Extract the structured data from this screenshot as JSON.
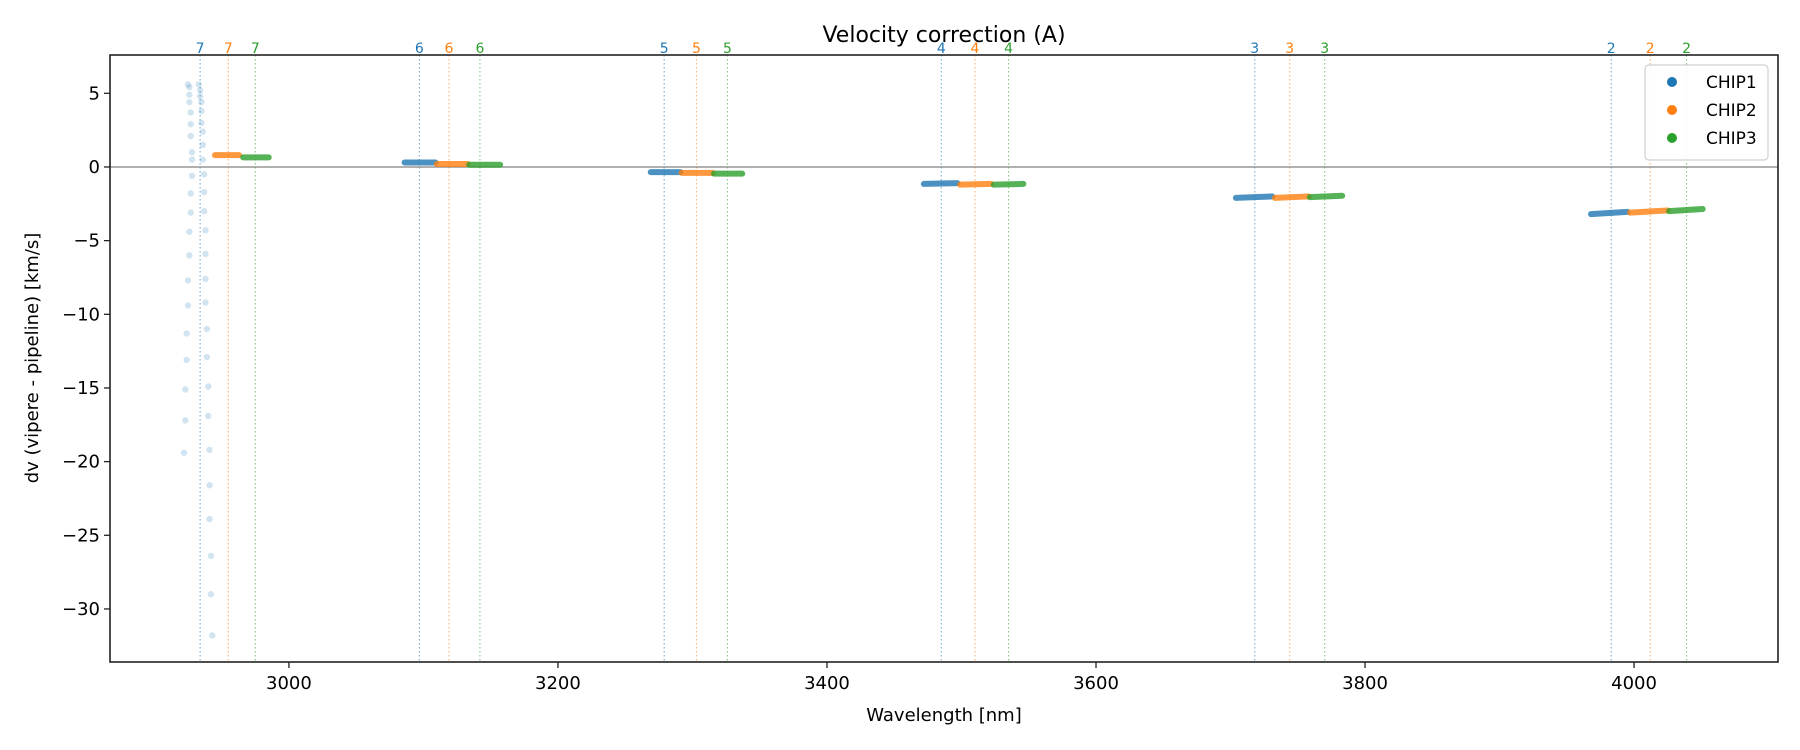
{
  "chart_data": {
    "type": "scatter",
    "title": "Velocity correction (A)",
    "xlabel": "Wavelength [nm]",
    "ylabel": "dv (vipere - pipeline) [km/s]",
    "xlim": [
      2867,
      4107
    ],
    "ylim": [
      -33.6,
      7.6
    ],
    "xticks": [
      3000,
      3200,
      3400,
      3600,
      3800,
      4000
    ],
    "xtick_labels": [
      "3000",
      "3200",
      "3400",
      "3600",
      "3800",
      "4000"
    ],
    "yticks": [
      5,
      0,
      -5,
      -10,
      -15,
      -20,
      -25,
      -30
    ],
    "ytick_labels": [
      "5",
      "0",
      "−5",
      "−10",
      "−15",
      "−20",
      "−25",
      "−30"
    ],
    "grid": false,
    "zero_line": 0,
    "legend": {
      "placement": "top-right",
      "entries": [
        {
          "label": "CHIP1",
          "color": "#1f77b4"
        },
        {
          "label": "CHIP2",
          "color": "#ff7f0e"
        },
        {
          "label": "CHIP3",
          "color": "#2ca02c"
        }
      ]
    },
    "order_markers": [
      {
        "order": "7",
        "chip": "CHIP1",
        "wavelength": 2934
      },
      {
        "order": "7",
        "chip": "CHIP2",
        "wavelength": 2955
      },
      {
        "order": "7",
        "chip": "CHIP3",
        "wavelength": 2975
      },
      {
        "order": "6",
        "chip": "CHIP1",
        "wavelength": 3097
      },
      {
        "order": "6",
        "chip": "CHIP2",
        "wavelength": 3119
      },
      {
        "order": "6",
        "chip": "CHIP3",
        "wavelength": 3142
      },
      {
        "order": "5",
        "chip": "CHIP1",
        "wavelength": 3279
      },
      {
        "order": "5",
        "chip": "CHIP2",
        "wavelength": 3303
      },
      {
        "order": "5",
        "chip": "CHIP3",
        "wavelength": 3326
      },
      {
        "order": "4",
        "chip": "CHIP1",
        "wavelength": 3485
      },
      {
        "order": "4",
        "chip": "CHIP2",
        "wavelength": 3510
      },
      {
        "order": "4",
        "chip": "CHIP3",
        "wavelength": 3535
      },
      {
        "order": "3",
        "chip": "CHIP1",
        "wavelength": 3718
      },
      {
        "order": "3",
        "chip": "CHIP2",
        "wavelength": 3744
      },
      {
        "order": "3",
        "chip": "CHIP3",
        "wavelength": 3770
      },
      {
        "order": "2",
        "chip": "CHIP1",
        "wavelength": 3983
      },
      {
        "order": "2",
        "chip": "CHIP2",
        "wavelength": 4012
      },
      {
        "order": "2",
        "chip": "CHIP3",
        "wavelength": 4039
      }
    ],
    "segments": [
      {
        "order": "7",
        "chip": "CHIP2",
        "x": [
          2945,
          2963
        ],
        "y": [
          0.8,
          0.8
        ]
      },
      {
        "order": "7",
        "chip": "CHIP3",
        "x": [
          2966,
          2985
        ],
        "y": [
          0.65,
          0.65
        ]
      },
      {
        "order": "6",
        "chip": "CHIP1",
        "x": [
          3086,
          3109
        ],
        "y": [
          0.3,
          0.3
        ]
      },
      {
        "order": "6",
        "chip": "CHIP2",
        "x": [
          3110,
          3133
        ],
        "y": [
          0.2,
          0.2
        ]
      },
      {
        "order": "6",
        "chip": "CHIP3",
        "x": [
          3134,
          3157
        ],
        "y": [
          0.15,
          0.15
        ]
      },
      {
        "order": "5",
        "chip": "CHIP1",
        "x": [
          3269,
          3291
        ],
        "y": [
          -0.35,
          -0.35
        ]
      },
      {
        "order": "5",
        "chip": "CHIP2",
        "x": [
          3292,
          3315
        ],
        "y": [
          -0.4,
          -0.4
        ]
      },
      {
        "order": "5",
        "chip": "CHIP3",
        "x": [
          3316,
          3337
        ],
        "y": [
          -0.45,
          -0.45
        ]
      },
      {
        "order": "4",
        "chip": "CHIP1",
        "x": [
          3472,
          3497
        ],
        "y": [
          -1.15,
          -1.1
        ]
      },
      {
        "order": "4",
        "chip": "CHIP2",
        "x": [
          3499,
          3522
        ],
        "y": [
          -1.2,
          -1.15
        ]
      },
      {
        "order": "4",
        "chip": "CHIP3",
        "x": [
          3524,
          3546
        ],
        "y": [
          -1.2,
          -1.15
        ]
      },
      {
        "order": "3",
        "chip": "CHIP1",
        "x": [
          3704,
          3731
        ],
        "y": [
          -2.1,
          -2.0
        ]
      },
      {
        "order": "3",
        "chip": "CHIP2",
        "x": [
          3733,
          3758
        ],
        "y": [
          -2.1,
          -2.0
        ]
      },
      {
        "order": "3",
        "chip": "CHIP3",
        "x": [
          3759,
          3783
        ],
        "y": [
          -2.05,
          -1.95
        ]
      },
      {
        "order": "2",
        "chip": "CHIP1",
        "x": [
          3968,
          3995
        ],
        "y": [
          -3.2,
          -3.05
        ]
      },
      {
        "order": "2",
        "chip": "CHIP2",
        "x": [
          3997,
          4025
        ],
        "y": [
          -3.1,
          -2.95
        ]
      },
      {
        "order": "2",
        "chip": "CHIP3",
        "x": [
          4026,
          4051
        ],
        "y": [
          -3.0,
          -2.85
        ]
      }
    ],
    "scatter_points": {
      "chip": "CHIP1",
      "order": "7",
      "x": [
        2925,
        2926,
        2926,
        2926,
        2927,
        2927,
        2927,
        2928,
        2928,
        2928,
        2927,
        2927,
        2926,
        2926,
        2925,
        2925,
        2924,
        2924,
        2923,
        2923,
        2922,
        2933,
        2934,
        2934,
        2935,
        2935,
        2935,
        2936,
        2936,
        2936,
        2937,
        2937,
        2937,
        2938,
        2938,
        2938,
        2938,
        2939,
        2939,
        2940,
        2940,
        2941,
        2941,
        2941,
        2942,
        2942,
        2943
      ],
      "y": [
        5.6,
        5.4,
        4.9,
        4.4,
        3.7,
        2.9,
        2.1,
        1.0,
        0.5,
        -0.6,
        -1.8,
        -3.1,
        -4.4,
        -6.0,
        -7.7,
        -9.4,
        -11.3,
        -13.1,
        -15.1,
        -17.2,
        -19.4,
        5.6,
        5.2,
        4.8,
        4.4,
        3.8,
        3.0,
        2.4,
        1.5,
        0.5,
        -0.5,
        -1.7,
        -3.0,
        -4.3,
        -5.9,
        -7.6,
        -9.2,
        -11.0,
        -12.9,
        -14.9,
        -16.9,
        -19.2,
        -21.6,
        -23.9,
        -26.4,
        -29.0,
        -31.8
      ]
    }
  }
}
